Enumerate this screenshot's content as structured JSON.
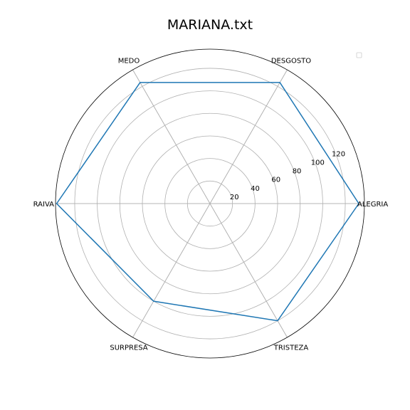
{
  "chart_data": {
    "type": "radar",
    "title": "MARIANA.txt",
    "categories": [
      "ALEGRIA",
      "DESGOSTO",
      "MEDO",
      "RAIVA",
      "SURPRESA",
      "TRISTEZA"
    ],
    "series": [
      {
        "values": [
          132,
          124,
          124,
          136,
          100,
          120
        ],
        "color": "#1f77b4"
      }
    ],
    "rlim": [
      0,
      137
    ],
    "rticks": [
      20,
      40,
      60,
      80,
      100,
      120
    ],
    "grid": true,
    "legend": "top-right",
    "legend_entries": []
  }
}
